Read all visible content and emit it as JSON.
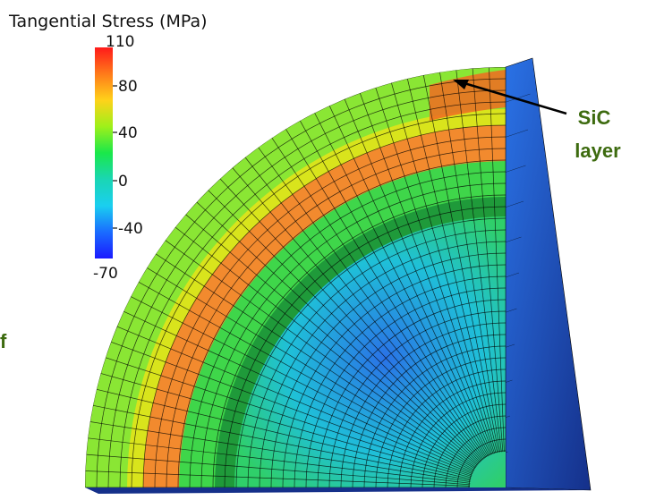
{
  "colorbar": {
    "title": "Tangential Stress (MPa)",
    "max_label": "110",
    "min_label": "-70",
    "ticks": [
      "80",
      "40",
      "0",
      "-40"
    ],
    "gradient": [
      "#ff1a1a",
      "#ff7a1a",
      "#ffd21a",
      "#9ef01a",
      "#1ae84a",
      "#1ad6b4",
      "#1acff0",
      "#1a6cff",
      "#1a1aff"
    ]
  },
  "annotation": {
    "label_line1": "SiC",
    "label_line2": "layer",
    "fragment": "f",
    "color": "#3d6b0f",
    "arrow_color": "#000000"
  },
  "model": {
    "colors": {
      "outer_shell": "#8ae634",
      "outer_shell_face": "#7fd82c",
      "sic_layer": "#f28a2e",
      "sic_layer_hot": "#f06a22",
      "yellow_band": "#d9e41c",
      "inner_green": "#3fd64a",
      "dark_band": "#1f9a3a",
      "core_green": "#2fcf6a",
      "core_cyan": "#1fc0d8",
      "core_blue": "#2a72e6",
      "side_face_dark": "#15308a",
      "mesh": "#000000"
    }
  }
}
